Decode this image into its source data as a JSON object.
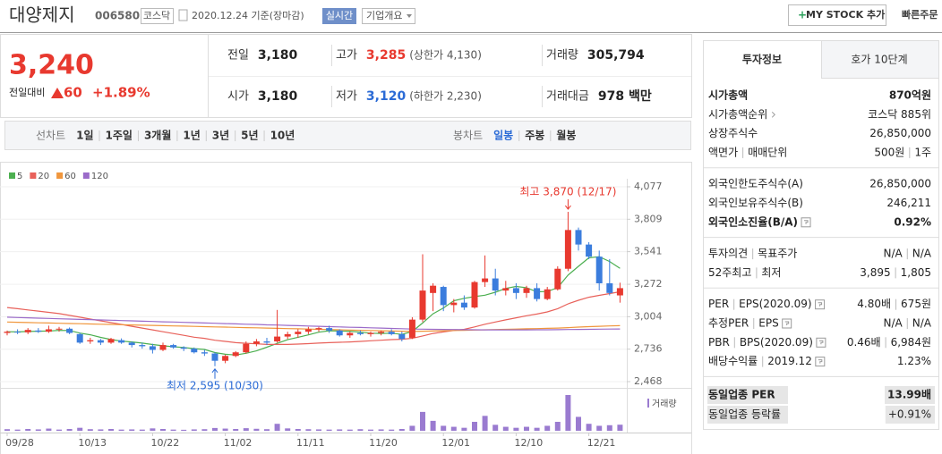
{
  "header": {
    "name": "대양제지",
    "code": "006580",
    "market": "코스닥",
    "date": "2020.12.24 기준(장마감)",
    "realtime": "실시간",
    "overview": "기업개요",
    "my_stock": "MY STOCK 추가",
    "quick_order": "빠른주문"
  },
  "quote": {
    "price": "3,240",
    "change_label": "전일대비",
    "change": "60",
    "change_rate": "+1.89%",
    "color": "#e8392f",
    "rows": [
      [
        {
          "label": "전일",
          "value": "3,180"
        },
        {
          "label": "고가",
          "value": "3,285",
          "note": "(상한가 4,130)",
          "color": "#e8392f"
        },
        {
          "label": "거래량",
          "value": "305,794"
        }
      ],
      [
        {
          "label": "시가",
          "value": "3,180"
        },
        {
          "label": "저가",
          "value": "3,120",
          "note": "(하한가 2,230)",
          "color": "#2b6bd6"
        },
        {
          "label": "거래대금",
          "value": "978 백만"
        }
      ]
    ]
  },
  "periods": {
    "line_label": "선차트",
    "line": [
      "1일",
      "1주일",
      "3개월",
      "1년",
      "3년",
      "5년",
      "10년"
    ],
    "candle_label": "봉차트",
    "candle": [
      "일봉",
      "주봉",
      "월봉"
    ],
    "candle_selected": 0
  },
  "info": {
    "tabs": [
      "투자정보",
      "호가 10단계"
    ],
    "groups": [
      [
        {
          "label": [
            "시가총액"
          ],
          "value": [
            "870억원"
          ],
          "bold": true
        },
        {
          "label": [
            "시가총액순위"
          ],
          "value": [
            "코스닥 885위"
          ],
          "arrow": true
        },
        {
          "label": [
            "상장주식수"
          ],
          "value": [
            "26,850,000"
          ]
        },
        {
          "label": [
            "액면가",
            "매매단위"
          ],
          "value": [
            "500원",
            "1주"
          ]
        }
      ],
      [
        {
          "label": [
            "외국인한도주식수(A)"
          ],
          "value": [
            "26,850,000"
          ]
        },
        {
          "label": [
            "외국인보유주식수(B)"
          ],
          "value": [
            "246,211"
          ]
        },
        {
          "label": [
            "외국인소진율(B/A)"
          ],
          "value": [
            "0.92%"
          ],
          "bold": true,
          "icon": true
        }
      ],
      [
        {
          "label": [
            "투자의견",
            "목표주가"
          ],
          "value": [
            "N/A",
            "N/A"
          ]
        },
        {
          "label": [
            "52주최고",
            "최저"
          ],
          "value": [
            "3,895",
            "1,805"
          ]
        }
      ],
      [
        {
          "label": [
            "PER",
            "EPS(2020.09)"
          ],
          "value": [
            "4.80배",
            "675원"
          ],
          "icon": true
        },
        {
          "label": [
            "추정PER",
            "EPS"
          ],
          "value": [
            "N/A",
            "N/A"
          ],
          "icon": true
        },
        {
          "label": [
            "PBR",
            "BPS(2020.09)"
          ],
          "value": [
            "0.46배",
            "6,984원"
          ],
          "icon": true
        },
        {
          "label": [
            "배당수익률",
            "2019.12"
          ],
          "value": [
            "1.23%"
          ],
          "icon": true
        }
      ]
    ],
    "peer": [
      {
        "label": [
          "동일업종 PER"
        ],
        "value": [
          "13.99배"
        ],
        "bold": true
      },
      {
        "label": [
          "동일업종 등락률"
        ],
        "value": [
          "+0.91%"
        ]
      }
    ]
  },
  "chart_data": {
    "type": "candlestick",
    "categories": [
      "09/28",
      null,
      null,
      null,
      null,
      null,
      null,
      "10/13",
      null,
      null,
      null,
      null,
      null,
      null,
      "10/22",
      null,
      null,
      null,
      null,
      null,
      null,
      "11/02",
      null,
      null,
      null,
      null,
      null,
      null,
      "11/11",
      null,
      null,
      null,
      null,
      null,
      null,
      "11/20",
      null,
      null,
      null,
      null,
      null,
      null,
      "12/01",
      null,
      null,
      null,
      null,
      null,
      null,
      "12/10",
      null,
      null,
      null,
      null,
      null,
      null,
      "12/21",
      null,
      null,
      null
    ],
    "open": [
      2870,
      2880,
      2875,
      2890,
      2880,
      2900,
      2905,
      2860,
      2800,
      2810,
      2790,
      2810,
      2790,
      2770,
      2760,
      2730,
      2770,
      2750,
      2740,
      2710,
      2700,
      2640,
      2680,
      2710,
      2780,
      2800,
      2800,
      2840,
      2860,
      2880,
      2900,
      2910,
      2890,
      2850,
      2870,
      2860,
      2870,
      2880,
      2860,
      2830,
      2980,
      3200,
      3250,
      3100,
      3120,
      3080,
      3290,
      3320,
      3220,
      3240,
      3200,
      3240,
      3150,
      3230,
      3400,
      3720,
      3600,
      3500,
      3280,
      3180
    ],
    "high": [
      2890,
      2900,
      2910,
      2910,
      2930,
      2920,
      2915,
      2870,
      2830,
      2820,
      2830,
      2825,
      2800,
      2790,
      2780,
      2790,
      2780,
      2760,
      2750,
      2730,
      2710,
      2690,
      2720,
      2800,
      2820,
      2830,
      3060,
      2880,
      2900,
      2920,
      2920,
      2930,
      2900,
      2880,
      2890,
      2880,
      2890,
      2900,
      2880,
      3000,
      3520,
      3280,
      3260,
      3150,
      3180,
      3300,
      3510,
      3400,
      3300,
      3280,
      3260,
      3280,
      3250,
      3420,
      3870,
      3740,
      3620,
      3550,
      3480,
      3285
    ],
    "low": [
      2850,
      2860,
      2860,
      2870,
      2870,
      2880,
      2860,
      2780,
      2780,
      2770,
      2780,
      2780,
      2750,
      2740,
      2700,
      2720,
      2740,
      2720,
      2700,
      2680,
      2595,
      2620,
      2670,
      2700,
      2760,
      2770,
      2790,
      2820,
      2830,
      2860,
      2880,
      2870,
      2840,
      2830,
      2850,
      2840,
      2850,
      2850,
      2800,
      2820,
      2960,
      3050,
      3050,
      3040,
      3060,
      3070,
      3250,
      3180,
      3180,
      3150,
      3160,
      3130,
      3140,
      3220,
      3380,
      3550,
      3480,
      3220,
      3180,
      3120
    ],
    "close": [
      2880,
      2875,
      2895,
      2880,
      2900,
      2905,
      2870,
      2790,
      2810,
      2790,
      2820,
      2790,
      2770,
      2760,
      2730,
      2770,
      2750,
      2740,
      2710,
      2700,
      2640,
      2680,
      2710,
      2780,
      2800,
      2790,
      2840,
      2860,
      2880,
      2900,
      2910,
      2890,
      2850,
      2870,
      2860,
      2870,
      2880,
      2860,
      2820,
      2980,
      3220,
      3260,
      3100,
      3120,
      3080,
      3290,
      3320,
      3220,
      3240,
      3200,
      3240,
      3150,
      3230,
      3400,
      3720,
      3600,
      3500,
      3280,
      3200,
      3240
    ],
    "up_color": "#e8392f",
    "down_color": "#3b7ddd",
    "series": [
      {
        "name": "5",
        "color": "#4caf50",
        "values": [
          2880,
          2878,
          2882,
          2884,
          2886,
          2891,
          2890,
          2869,
          2855,
          2833,
          2816,
          2802,
          2796,
          2786,
          2774,
          2764,
          2756,
          2750,
          2740,
          2734,
          2708,
          2694,
          2688,
          2702,
          2722,
          2752,
          2784,
          2814,
          2834,
          2854,
          2876,
          2888,
          2886,
          2884,
          2876,
          2868,
          2866,
          2868,
          2858,
          2882,
          2952,
          3028,
          3076,
          3136,
          3156,
          3170,
          3182,
          3206,
          3238,
          3254,
          3244,
          3210,
          3212,
          3244,
          3348,
          3420,
          3490,
          3500,
          3460,
          3404
        ]
      },
      {
        "name": "20",
        "color": "#e8615a",
        "values": [
          3080,
          3070,
          3060,
          3050,
          3040,
          3030,
          3015,
          3000,
          2985,
          2970,
          2955,
          2940,
          2925,
          2910,
          2895,
          2880,
          2865,
          2850,
          2835,
          2825,
          2810,
          2800,
          2790,
          2785,
          2780,
          2775,
          2775,
          2775,
          2778,
          2782,
          2786,
          2790,
          2793,
          2796,
          2800,
          2805,
          2810,
          2815,
          2818,
          2826,
          2845,
          2866,
          2878,
          2890,
          2900,
          2920,
          2942,
          2960,
          2978,
          2995,
          3012,
          3026,
          3044,
          3070,
          3110,
          3140,
          3165,
          3180,
          3195,
          3210
        ]
      },
      {
        "name": "60",
        "color": "#f0963c",
        "values": [
          2960,
          2958,
          2956,
          2954,
          2952,
          2950,
          2948,
          2946,
          2944,
          2942,
          2940,
          2938,
          2936,
          2934,
          2932,
          2930,
          2928,
          2926,
          2924,
          2922,
          2920,
          2918,
          2916,
          2914,
          2912,
          2910,
          2908,
          2906,
          2904,
          2902,
          2900,
          2898,
          2896,
          2894,
          2892,
          2890,
          2888,
          2886,
          2884,
          2882,
          2884,
          2886,
          2888,
          2890,
          2892,
          2894,
          2896,
          2898,
          2900,
          2902,
          2904,
          2906,
          2908,
          2910,
          2914,
          2918,
          2922,
          2925,
          2928,
          2930
        ]
      },
      {
        "name": "120",
        "color": "#9b6bc9",
        "values": [
          3000,
          2997,
          2995,
          2992,
          2990,
          2987,
          2985,
          2982,
          2980,
          2977,
          2975,
          2972,
          2970,
          2967,
          2965,
          2962,
          2960,
          2957,
          2955,
          2952,
          2950,
          2947,
          2945,
          2942,
          2940,
          2937,
          2935,
          2932,
          2930,
          2927,
          2925,
          2922,
          2920,
          2917,
          2915,
          2912,
          2910,
          2907,
          2905,
          2902,
          2901,
          2900,
          2899,
          2898,
          2897,
          2896,
          2895,
          2895,
          2895,
          2895,
          2895,
          2896,
          2896,
          2897,
          2898,
          2899,
          2900,
          2901,
          2902,
          2903
        ]
      }
    ],
    "volume": {
      "name": "거래량",
      "color": "#9a7bd0",
      "values": [
        80000,
        60000,
        90000,
        70000,
        110000,
        60000,
        90000,
        150000,
        80000,
        70000,
        90000,
        60000,
        70000,
        60000,
        120000,
        90000,
        60000,
        50000,
        70000,
        80000,
        140000,
        110000,
        90000,
        130000,
        100000,
        80000,
        350000,
        120000,
        90000,
        80000,
        70000,
        60000,
        70000,
        60000,
        80000,
        60000,
        70000,
        60000,
        90000,
        250000,
        950000,
        500000,
        250000,
        200000,
        150000,
        450000,
        750000,
        300000,
        200000,
        150000,
        200000,
        150000,
        250000,
        450000,
        1800000,
        700000,
        350000,
        250000,
        280000,
        305794
      ]
    },
    "annotations": [
      {
        "text": "최고 3,870 (12/17)",
        "at": "high",
        "color": "#e8392f"
      },
      {
        "text": "최저 2,595 (10/30)",
        "at": "low",
        "color": "#2b6bd6"
      }
    ],
    "ylim": [
      2468,
      4077
    ],
    "yticks": [
      {
        "value": 2468,
        "label": "2,468"
      },
      {
        "value": 2736,
        "label": "2,736"
      },
      {
        "value": 3004,
        "label": "3,004"
      },
      {
        "value": 3272,
        "label": "3,272"
      },
      {
        "value": 3541,
        "label": "3,541"
      },
      {
        "value": 3809,
        "label": "3,809"
      },
      {
        "value": 4077,
        "label": "4,077"
      }
    ],
    "grid": true
  }
}
